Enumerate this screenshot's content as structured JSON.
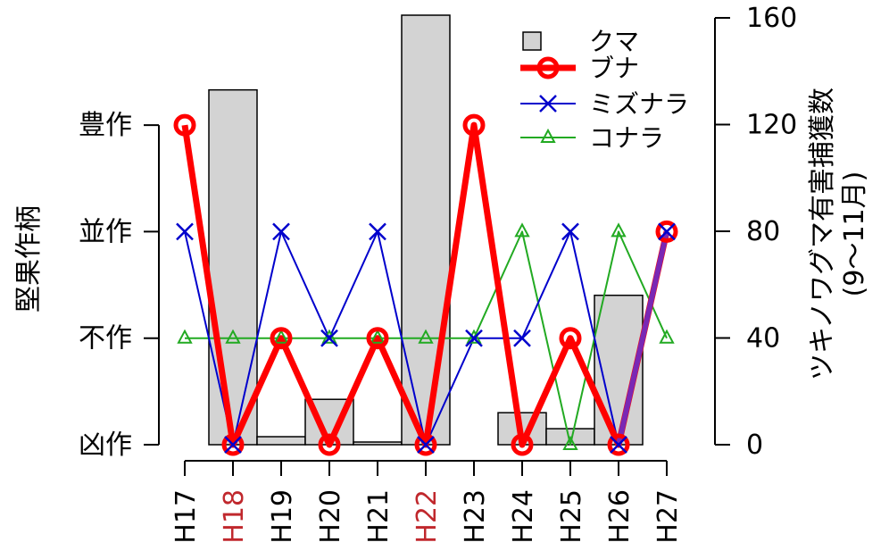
{
  "chart_data": {
    "type": "bar+line",
    "categories": [
      "H17",
      "H18",
      "H19",
      "H20",
      "H21",
      "H22",
      "H23",
      "H24",
      "H25",
      "H26",
      "H27"
    ],
    "highlighted_categories": [
      "H18",
      "H22"
    ],
    "highlight_color": "#c0282d",
    "bars": {
      "name": "クマ",
      "values": [
        null,
        133,
        3,
        17,
        1,
        161,
        null,
        12,
        6,
        56,
        null
      ],
      "color": "#d3d3d3"
    },
    "series": [
      {
        "name": "ブナ",
        "color": "#ff0000",
        "marker": "circle",
        "values": [
          3,
          0,
          1,
          0,
          1,
          0,
          3,
          0,
          1,
          0,
          2
        ]
      },
      {
        "name": "ミズナラ",
        "color": "#0000cc",
        "marker": "x",
        "values": [
          2,
          0,
          2,
          1,
          2,
          0,
          1,
          1,
          2,
          0,
          2
        ]
      },
      {
        "name": "コナラ",
        "color": "#22aa22",
        "marker": "triangle",
        "values": [
          1,
          1,
          1,
          1,
          1,
          1,
          1,
          2,
          0,
          2,
          1
        ]
      }
    ],
    "y_left": {
      "label": "堅果作柄",
      "ticks": [
        "凶作",
        "不作",
        "並作",
        "豊作"
      ],
      "range": [
        0,
        3
      ]
    },
    "y_right": {
      "label_line1": "ツキノワグマ有害捕獲数",
      "label_line2": "(9～11月)",
      "ticks": [
        "0",
        "40",
        "80",
        "120",
        "160"
      ],
      "range": [
        0,
        160
      ]
    },
    "legend_position": "top-right",
    "grid": false
  }
}
